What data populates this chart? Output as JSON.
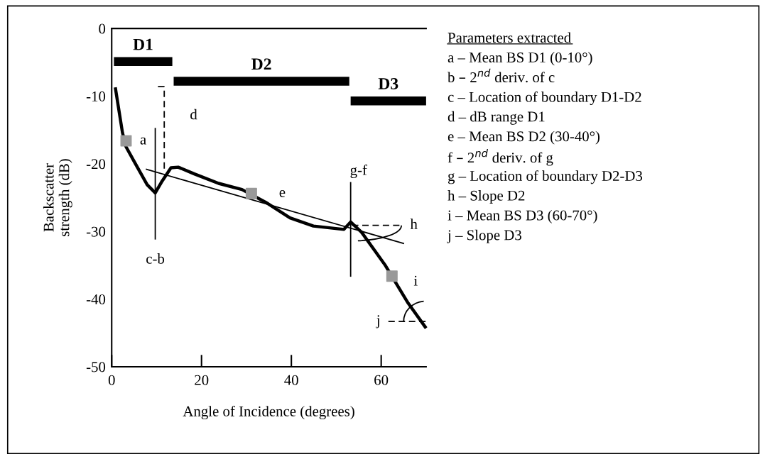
{
  "chart_data": {
    "type": "line",
    "xlabel": "Angle of Incidence (degrees)",
    "ylabel": "Backscatter\nstrength (dB)",
    "xlim": [
      0,
      70
    ],
    "ylim": [
      -50,
      0
    ],
    "xticks": [
      0,
      20,
      40,
      60
    ],
    "yticks": [
      0,
      -10,
      -20,
      -30,
      -40,
      -50
    ],
    "grid": false,
    "series": [
      {
        "color": "#000000",
        "x": [
          0.8,
          2.4,
          3.2,
          5.2,
          7.9,
          9.7,
          11.1,
          13.2,
          14.8,
          18.4,
          23.8,
          29,
          34.3,
          39.7,
          44.9,
          51.7,
          53.2,
          55.6,
          60.8,
          66,
          70
        ],
        "values": [
          -8.7,
          -15.4,
          -17.5,
          -19.9,
          -23.1,
          -24.3,
          -22.7,
          -20.6,
          -20.5,
          -21.5,
          -22.9,
          -23.8,
          -25.7,
          -28,
          -29.2,
          -29.7,
          -28.6,
          -30.1,
          -34.9,
          -40.6,
          -44.3
        ]
      },
      {
        "color": "#000000",
        "x": [
          7.6,
          65.1
        ],
        "values": [
          -20.8,
          -31.8
        ]
      },
      {
        "color": "#000000",
        "x": [
          9.7,
          9.7
        ],
        "values": [
          -14.7,
          -31.2
        ]
      },
      {
        "color": "#000000",
        "x": [
          53.2,
          53.2
        ],
        "values": [
          -22.7,
          -36.7
        ]
      },
      {
        "color": "#000000",
        "line_style": "dashed",
        "x": [
          10.3,
          11.7,
          11.7
        ],
        "values": [
          -8.6,
          -8.6,
          -21
        ]
      },
      {
        "color": "#000000",
        "line_style": "dashed",
        "x": [
          53.5,
          64.7
        ],
        "values": [
          -29.1,
          -29.1
        ]
      },
      {
        "color": "#000000",
        "line_style": "dashed",
        "x": [
          61.6,
          70
        ],
        "values": [
          -43.3,
          -43.3
        ]
      },
      {
        "name": "D1",
        "color": "#000000",
        "x": [
          0.5,
          13.5
        ],
        "values": [
          -4.9,
          -4.9
        ]
      },
      {
        "name": "D2",
        "color": "#000000",
        "x": [
          13.8,
          52.9
        ],
        "values": [
          -7.8,
          -7.8
        ]
      },
      {
        "name": "D3",
        "color": "#000000",
        "x": [
          53.2,
          70
        ],
        "values": [
          -10.7,
          -10.7
        ]
      },
      {
        "type": "scatter",
        "color": "#999999",
        "marker": "square",
        "x": [
          3.2,
          31.1,
          62.4
        ],
        "values": [
          -16.6,
          -24.4,
          -36.6
        ]
      }
    ],
    "annotations": [
      {
        "text": "a",
        "x": 3.2,
        "y": -16.6
      },
      {
        "text": "d",
        "x": 11.7,
        "y": -12.9
      },
      {
        "text": "e",
        "x": 31.1,
        "y": -24.4
      },
      {
        "text": "g-f",
        "x": 53.2,
        "y": -22.7
      },
      {
        "text": "h",
        "x": 64.7,
        "y": -29.1
      },
      {
        "text": "c-b",
        "x": 9.7,
        "y": -31.2
      },
      {
        "text": "i",
        "x": 62.4,
        "y": -36.6
      },
      {
        "text": "j",
        "x": 61.6,
        "y": -43.3
      },
      "Parameters extracted",
      "a – Mean BS D1 (0-10°)",
      "b – 2$^{nd}$ deriv. of c",
      "c – Location of boundary D1-D2",
      "d – dB range D1",
      "e – Mean BS D2 (30-40°)",
      "f – 2$^{nd}$ deriv. of g",
      "g – Location of boundary D2-D3",
      "h – Slope D2",
      "i – Mean BS D3 (60-70°)",
      "j – Slope D3"
    ]
  }
}
